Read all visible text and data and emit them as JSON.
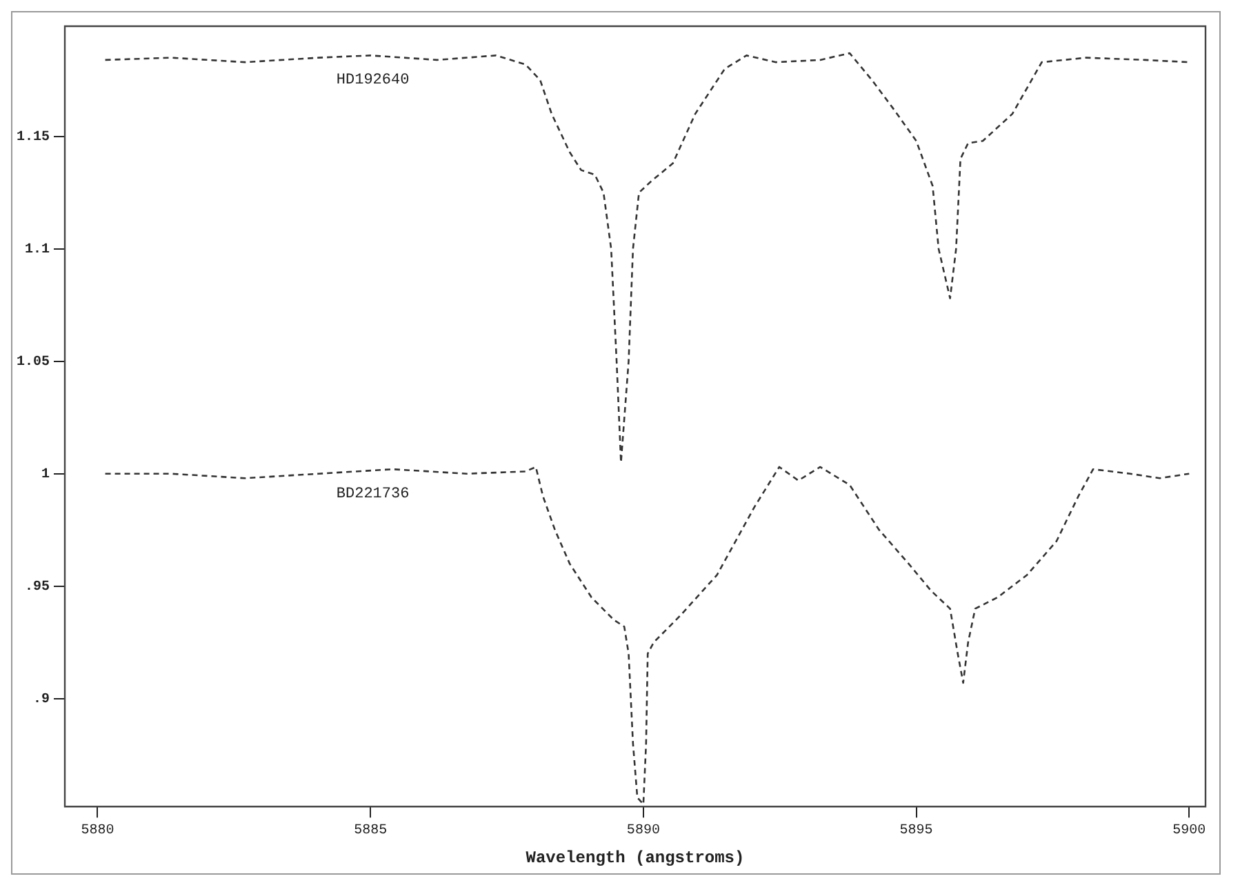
{
  "chart_data": {
    "type": "line",
    "xlabel": "Wavelength (angstroms)",
    "xlim": [
      5879.4,
      5900.3
    ],
    "xticks": [
      5880,
      5885,
      5890,
      5895,
      5900
    ],
    "ylim": [
      0.852,
      1.199
    ],
    "yticks": [
      {
        "value": 0.9,
        "label": ".9"
      },
      {
        "value": 0.95,
        "label": ".95"
      },
      1,
      1.05,
      1.1,
      1.15
    ],
    "grid": false,
    "legend": false,
    "marker": "none",
    "line_style": "dashed",
    "series": [
      {
        "name": "HD192640",
        "color": "#333333",
        "x": [
          5880.14,
          5881.35,
          5882.7,
          5884.05,
          5885.0,
          5886.22,
          5887.3,
          5887.84,
          5888.11,
          5888.32,
          5888.65,
          5888.86,
          5889.11,
          5889.27,
          5889.41,
          5889.51,
          5889.59,
          5889.73,
          5889.81,
          5889.92,
          5890.14,
          5890.54,
          5890.95,
          5891.49,
          5891.89,
          5892.43,
          5893.24,
          5893.78,
          5894.19,
          5894.59,
          5895.0,
          5895.3,
          5895.41,
          5895.62,
          5895.73,
          5895.81,
          5895.95,
          5896.22,
          5896.76,
          5897.3,
          5898.11,
          5899.19,
          5900.0
        ],
        "values": [
          1.184,
          1.185,
          1.183,
          1.185,
          1.186,
          1.184,
          1.186,
          1.182,
          1.175,
          1.16,
          1.143,
          1.135,
          1.133,
          1.125,
          1.1,
          1.05,
          1.005,
          1.05,
          1.1,
          1.125,
          1.13,
          1.138,
          1.16,
          1.18,
          1.186,
          1.183,
          1.184,
          1.187,
          1.175,
          1.162,
          1.148,
          1.128,
          1.1,
          1.078,
          1.1,
          1.14,
          1.147,
          1.148,
          1.16,
          1.183,
          1.185,
          1.184,
          1.183
        ]
      },
      {
        "name": "BD221736",
        "color": "#333333",
        "x": [
          5880.14,
          5881.35,
          5882.7,
          5884.05,
          5885.41,
          5886.76,
          5887.84,
          5888.03,
          5888.16,
          5888.38,
          5888.65,
          5889.05,
          5889.46,
          5889.65,
          5889.73,
          5889.81,
          5889.89,
          5890.0,
          5890.05,
          5890.08,
          5890.19,
          5890.68,
          5891.35,
          5892.03,
          5892.49,
          5892.84,
          5893.24,
          5893.78,
          5894.32,
          5894.86,
          5895.27,
          5895.62,
          5895.76,
          5895.86,
          5895.95,
          5896.08,
          5896.49,
          5897.03,
          5897.57,
          5897.97,
          5898.24,
          5898.92,
          5899.46,
          5900.0
        ],
        "values": [
          1.0,
          1.0,
          0.998,
          1.0,
          1.002,
          1.0,
          1.001,
          1.003,
          0.99,
          0.975,
          0.96,
          0.945,
          0.935,
          0.932,
          0.92,
          0.88,
          0.856,
          0.853,
          0.88,
          0.92,
          0.925,
          0.937,
          0.955,
          0.985,
          1.003,
          0.997,
          1.003,
          0.995,
          0.975,
          0.96,
          0.948,
          0.94,
          0.92,
          0.907,
          0.925,
          0.94,
          0.945,
          0.955,
          0.97,
          0.99,
          1.002,
          1.0,
          0.998,
          1.0
        ]
      }
    ]
  }
}
